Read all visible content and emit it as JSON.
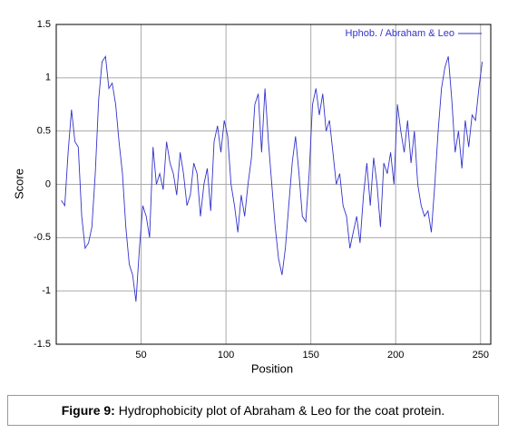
{
  "chart_data": {
    "type": "line",
    "xlabel": "Position",
    "ylabel": "Score",
    "x": [
      3,
      5,
      7,
      9,
      11,
      13,
      15,
      17,
      19,
      21,
      23,
      25,
      27,
      29,
      31,
      33,
      35,
      37,
      39,
      41,
      43,
      45,
      47,
      49,
      51,
      53,
      55,
      57,
      59,
      61,
      63,
      65,
      67,
      69,
      71,
      73,
      75,
      77,
      79,
      81,
      83,
      85,
      87,
      89,
      91,
      93,
      95,
      97,
      99,
      101,
      103,
      105,
      107,
      109,
      111,
      113,
      115,
      117,
      119,
      121,
      123,
      125,
      127,
      129,
      131,
      133,
      135,
      137,
      139,
      141,
      143,
      145,
      147,
      149,
      151,
      153,
      155,
      157,
      159,
      161,
      163,
      165,
      167,
      169,
      171,
      173,
      175,
      177,
      179,
      181,
      183,
      185,
      187,
      189,
      191,
      193,
      195,
      197,
      199,
      201,
      203,
      205,
      207,
      209,
      211,
      213,
      215,
      217,
      219,
      221,
      223,
      225,
      227,
      229,
      231,
      233,
      235,
      237,
      239,
      241,
      243,
      245,
      247,
      249,
      251
    ],
    "series": [
      {
        "name": "Hphob. / Abraham & Leo",
        "color": "#3333cc",
        "values": [
          -0.15,
          -0.2,
          0.3,
          0.7,
          0.4,
          0.35,
          -0.3,
          -0.6,
          -0.55,
          -0.4,
          0.1,
          0.8,
          1.15,
          1.2,
          0.9,
          0.95,
          0.75,
          0.4,
          0.1,
          -0.4,
          -0.75,
          -0.85,
          -1.1,
          -0.6,
          -0.2,
          -0.3,
          -0.5,
          0.35,
          0.0,
          0.1,
          -0.05,
          0.4,
          0.2,
          0.1,
          -0.1,
          0.3,
          0.1,
          -0.2,
          -0.1,
          0.2,
          0.1,
          -0.3,
          0.0,
          0.15,
          -0.25,
          0.4,
          0.55,
          0.3,
          0.6,
          0.45,
          0.0,
          -0.2,
          -0.45,
          -0.1,
          -0.3,
          0.0,
          0.25,
          0.75,
          0.85,
          0.3,
          0.9,
          0.4,
          0.0,
          -0.4,
          -0.7,
          -0.85,
          -0.6,
          -0.2,
          0.2,
          0.45,
          0.1,
          -0.3,
          -0.35,
          0.1,
          0.75,
          0.9,
          0.65,
          0.85,
          0.5,
          0.6,
          0.3,
          0.0,
          0.1,
          -0.2,
          -0.3,
          -0.6,
          -0.45,
          -0.3,
          -0.55,
          -0.1,
          0.2,
          -0.2,
          0.25,
          0.0,
          -0.4,
          0.2,
          0.1,
          0.3,
          0.0,
          0.75,
          0.5,
          0.3,
          0.6,
          0.2,
          0.5,
          0.0,
          -0.2,
          -0.3,
          -0.25,
          -0.45,
          0.0,
          0.5,
          0.9,
          1.1,
          1.2,
          0.8,
          0.3,
          0.5,
          0.15,
          0.6,
          0.35,
          0.65,
          0.6,
          0.9,
          1.15
        ]
      }
    ],
    "xlim": [
      0,
      256
    ],
    "xticks": [
      50,
      100,
      150,
      200,
      250
    ],
    "ylim": [
      -1.5,
      1.5
    ],
    "yticks": [
      1.5,
      1,
      0.5,
      0,
      -0.5,
      -1,
      -1.5
    ],
    "grid": true,
    "legend": "upper right"
  },
  "caption": {
    "label": "Figure 9:",
    "text": " Hydrophobicity plot of Abraham & Leo for the coat protein."
  }
}
